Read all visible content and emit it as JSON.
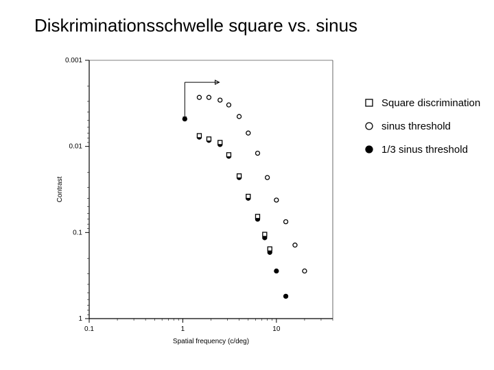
{
  "title": "Diskriminationsschwelle square vs. sinus",
  "chart": {
    "type": "scatter",
    "x_axis": {
      "label": "Spatial frequency (c/deg)",
      "scale": "log",
      "min": 0.1,
      "max": 40,
      "ticks": [
        0.1,
        1,
        10
      ],
      "tick_labels": [
        "0.1",
        "1",
        "10"
      ],
      "label_fontsize": 10,
      "tick_fontsize": 10
    },
    "y_axis": {
      "label": "Contrast",
      "scale": "log_reversed",
      "min": 0.001,
      "max": 1,
      "ticks": [
        0.001,
        0.01,
        0.1,
        1
      ],
      "tick_labels": [
        "0.001",
        "0.01",
        "0.1",
        "1"
      ],
      "label_fontsize": 10,
      "tick_fontsize": 10
    },
    "colors": {
      "background": "#ffffff",
      "axis": "#000000",
      "marker_stroke": "#000000",
      "marker_fill_open": "#ffffff",
      "marker_fill_closed": "#000000"
    },
    "marker_size": 6,
    "stroke_width": 1.3,
    "arrow": {
      "x": 1.05,
      "y_from": 0.0018,
      "y_to": 0.0045,
      "bar_x_from": 1.05,
      "bar_x_to": 2.45
    },
    "series": [
      {
        "name": "sinus_threshold",
        "marker": "circle-open",
        "points": [
          [
            1.5,
            0.0027
          ],
          [
            1.9,
            0.0027
          ],
          [
            2.5,
            0.0029
          ],
          [
            3.1,
            0.0033
          ],
          [
            4.0,
            0.0045
          ],
          [
            5.0,
            0.007
          ],
          [
            6.3,
            0.012
          ],
          [
            8.0,
            0.023
          ],
          [
            10.0,
            0.042
          ],
          [
            12.6,
            0.075
          ],
          [
            15.8,
            0.14
          ],
          [
            20.0,
            0.28
          ]
        ]
      },
      {
        "name": "one_third_sinus",
        "marker": "circle-filled",
        "points": [
          [
            1.05,
            0.0048
          ],
          [
            1.5,
            0.0078
          ],
          [
            1.9,
            0.0085
          ],
          [
            2.5,
            0.0095
          ],
          [
            3.1,
            0.013
          ],
          [
            4.0,
            0.023
          ],
          [
            5.0,
            0.04
          ],
          [
            6.3,
            0.07
          ],
          [
            7.5,
            0.115
          ],
          [
            8.5,
            0.17
          ],
          [
            10.0,
            0.28
          ],
          [
            12.6,
            0.55
          ]
        ]
      },
      {
        "name": "square_discrimination",
        "marker": "square-open",
        "points": [
          [
            1.5,
            0.0075
          ],
          [
            1.9,
            0.0082
          ],
          [
            2.5,
            0.009
          ],
          [
            3.1,
            0.0125
          ],
          [
            4.0,
            0.022
          ],
          [
            5.0,
            0.038
          ],
          [
            6.3,
            0.065
          ],
          [
            7.5,
            0.105
          ],
          [
            8.5,
            0.155
          ]
        ]
      }
    ]
  },
  "legend": {
    "items": [
      {
        "marker": "square-open",
        "label": "Square discrimination"
      },
      {
        "marker": "circle-open",
        "label": "sinus threshold"
      },
      {
        "marker": "circle-filled",
        "label": "1/3 sinus threshold"
      }
    ]
  }
}
